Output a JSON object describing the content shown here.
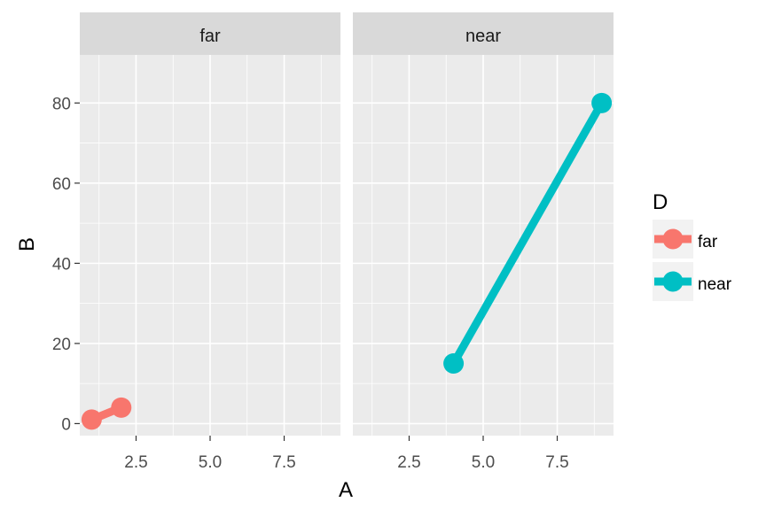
{
  "chart_data": {
    "type": "line",
    "facet_variable": "D",
    "facets": [
      "far",
      "near"
    ],
    "xlabel": "A",
    "ylabel": "B",
    "xlim": [
      0.6,
      9.4
    ],
    "ylim": [
      -3,
      92
    ],
    "x_ticks": [
      2.5,
      5.0,
      7.5
    ],
    "x_tick_labels": [
      "2.5",
      "5.0",
      "7.5"
    ],
    "y_ticks": [
      0,
      20,
      40,
      60,
      80
    ],
    "y_tick_labels": [
      "0",
      "20",
      "40",
      "60",
      "80"
    ],
    "grid": true,
    "legend": {
      "title": "D",
      "position": "right",
      "entries": [
        "far",
        "near"
      ]
    },
    "series": [
      {
        "name": "far",
        "color": "#F8766D",
        "x": [
          1,
          2
        ],
        "y": [
          1,
          4
        ]
      },
      {
        "name": "near",
        "color": "#00BFC4",
        "x": [
          4,
          9
        ],
        "y": [
          15,
          80
        ]
      }
    ]
  }
}
